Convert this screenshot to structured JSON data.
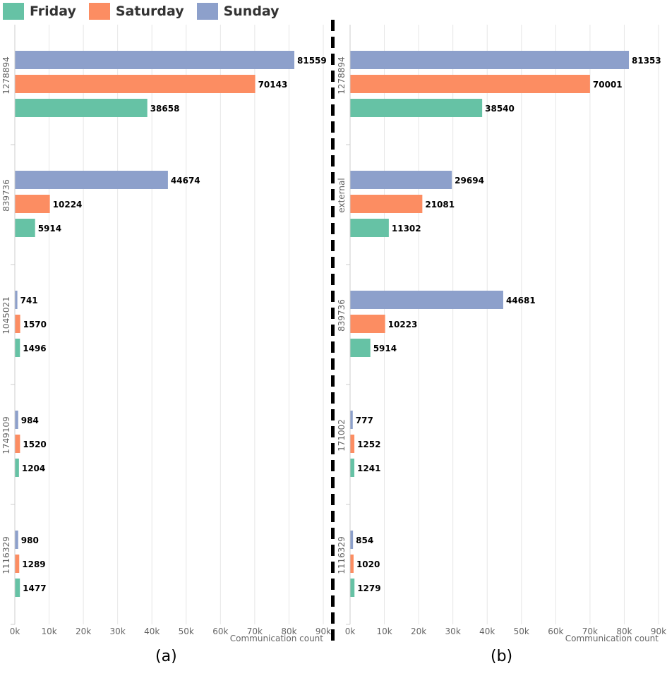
{
  "legend": [
    {
      "name": "Friday",
      "color": "#66c2a5"
    },
    {
      "name": "Saturday",
      "color": "#fc8d62"
    },
    {
      "name": "Sunday",
      "color": "#8da0cb"
    }
  ],
  "panel_labels": {
    "a": "(a)",
    "b": "(b)"
  },
  "chart_data": [
    {
      "type": "bar",
      "orientation": "horizontal",
      "panel": "(a)",
      "title": "",
      "xlabel": "Communication count",
      "ylabel": "",
      "xlim": [
        0,
        90000
      ],
      "xticks": [
        "0k",
        "10k",
        "20k",
        "30k",
        "40k",
        "50k",
        "60k",
        "70k",
        "80k",
        "90k"
      ],
      "grid": true,
      "categories": [
        "1278894",
        "839736",
        "1045021",
        "1749109",
        "1116329"
      ],
      "series": [
        {
          "name": "Sunday",
          "color": "#8da0cb",
          "values": [
            81559,
            44674,
            741,
            984,
            980
          ]
        },
        {
          "name": "Saturday",
          "color": "#fc8d62",
          "values": [
            70143,
            10224,
            1570,
            1520,
            1289
          ]
        },
        {
          "name": "Friday",
          "color": "#66c2a5",
          "values": [
            38658,
            5914,
            1496,
            1204,
            1477
          ]
        }
      ]
    },
    {
      "type": "bar",
      "orientation": "horizontal",
      "panel": "(b)",
      "title": "",
      "xlabel": "Communication count",
      "ylabel": "",
      "xlim": [
        0,
        90000
      ],
      "xticks": [
        "0k",
        "10k",
        "20k",
        "30k",
        "40k",
        "50k",
        "60k",
        "70k",
        "80k",
        "90k"
      ],
      "grid": true,
      "categories": [
        "1278894",
        "external",
        "839736",
        "171002",
        "1116329"
      ],
      "series": [
        {
          "name": "Sunday",
          "color": "#8da0cb",
          "values": [
            81353,
            29694,
            44681,
            777,
            854
          ]
        },
        {
          "name": "Saturday",
          "color": "#fc8d62",
          "values": [
            70001,
            21081,
            10223,
            1252,
            1020
          ]
        },
        {
          "name": "Friday",
          "color": "#66c2a5",
          "values": [
            38540,
            11302,
            5914,
            1241,
            1279
          ]
        }
      ]
    }
  ]
}
